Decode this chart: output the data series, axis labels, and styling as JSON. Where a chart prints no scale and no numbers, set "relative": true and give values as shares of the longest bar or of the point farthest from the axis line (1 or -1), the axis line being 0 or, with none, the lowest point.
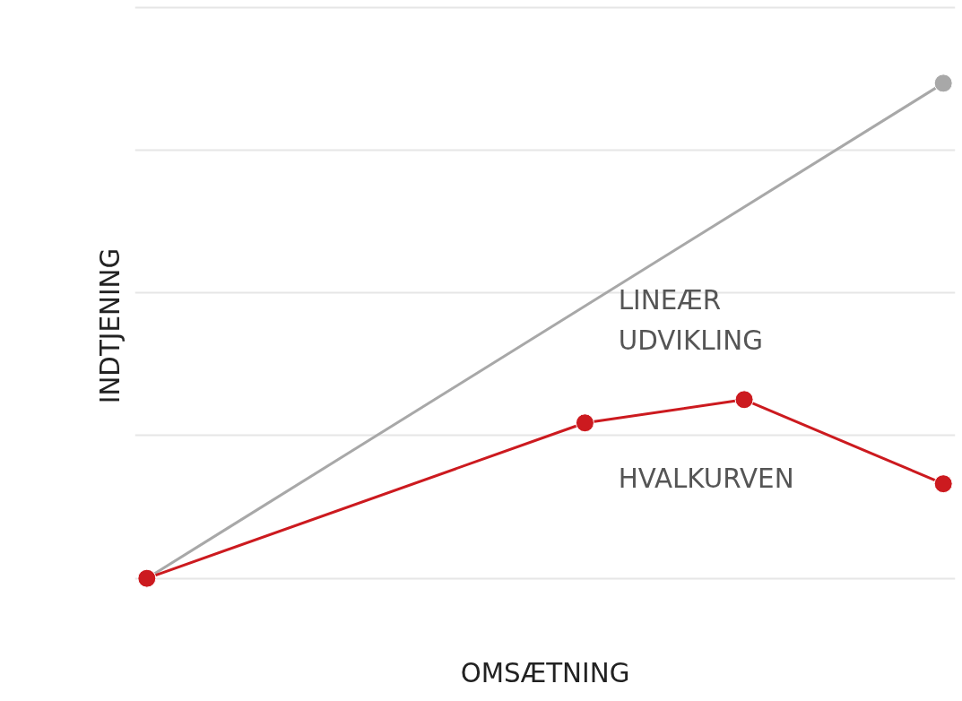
{
  "chart_data": {
    "type": "line",
    "relative": true,
    "xlabel": "OMSÆTNING",
    "ylabel": "INDTJENING",
    "grid": "y",
    "marker": "circle",
    "line_style": "solid",
    "categories": [
      null,
      null,
      null,
      null,
      null,
      null,
      null,
      null,
      null,
      null,
      null,
      null,
      null,
      null,
      null,
      null,
      null,
      null,
      null,
      null,
      null,
      null,
      null,
      null,
      null,
      null,
      null,
      null,
      null,
      null,
      null,
      null,
      null,
      null,
      null,
      null,
      null,
      null,
      null,
      null,
      null
    ],
    "series": [
      {
        "name": "LINEÆR UDVIKLING",
        "color": "#a8a8a8",
        "values": [
          0,
          null,
          null,
          null,
          null,
          null,
          null,
          null,
          null,
          null,
          null,
          null,
          null,
          null,
          null,
          null,
          null,
          null,
          null,
          null,
          null,
          null,
          null,
          null,
          null,
          null,
          null,
          null,
          null,
          null,
          null,
          null,
          null,
          null,
          null,
          null,
          null,
          null,
          null,
          null,
          1
        ]
      },
      {
        "name": "HVALKURVEN",
        "color": "#cc1a1f",
        "values": [
          0,
          null,
          null,
          null,
          null,
          null,
          null,
          null,
          null,
          null,
          null,
          null,
          null,
          null,
          null,
          null,
          null,
          null,
          null,
          null,
          null,
          null,
          0.314,
          null,
          null,
          null,
          null,
          null,
          null,
          null,
          0.361,
          null,
          null,
          null,
          null,
          null,
          null,
          null,
          null,
          null,
          0.191
        ]
      }
    ]
  }
}
